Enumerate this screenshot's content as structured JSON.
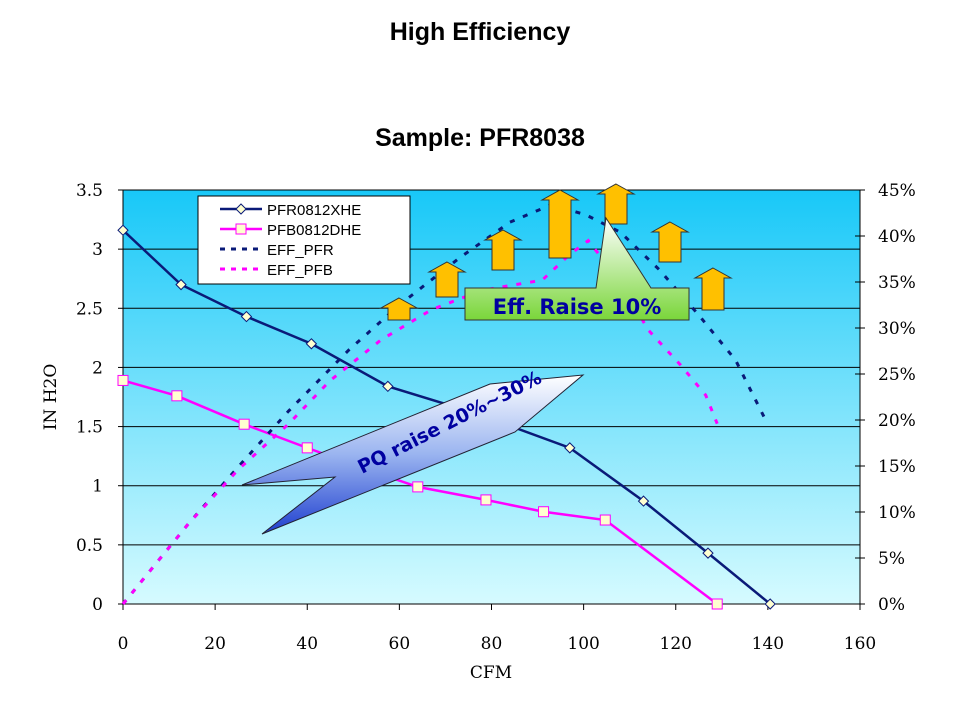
{
  "header": {
    "title": "High Efficiency"
  },
  "chart_data": {
    "type": "line",
    "title": "Sample: PFR8038",
    "xlabel": "CFM",
    "ylabel": "IN H2O",
    "y2label": "",
    "xlim": [
      0,
      160
    ],
    "ylim": [
      0,
      3.5
    ],
    "y2lim": [
      0,
      45
    ],
    "x_ticks": [
      "0",
      "20",
      "40",
      "60",
      "80",
      "100",
      "120",
      "140",
      "160"
    ],
    "y_ticks": [
      "0",
      "0.5",
      "1",
      "1.5",
      "2",
      "2.5",
      "3",
      "3.5"
    ],
    "y2_ticks": [
      "0%",
      "5%",
      "10%",
      "15%",
      "20%",
      "25%",
      "30%",
      "35%",
      "40%",
      "45%"
    ],
    "grid": true,
    "legend_position": "top-left",
    "series": [
      {
        "name": "PFR0812XHE",
        "axis": "left",
        "color": "#0a1a78",
        "style": "solid",
        "marker": "diamond",
        "x": [
          0,
          12.6,
          26.8,
          40.9,
          57.5,
          76,
          97,
          113,
          127,
          140.5
        ],
        "y": [
          3.16,
          2.7,
          2.43,
          2.2,
          1.84,
          1.62,
          1.32,
          0.87,
          0.43,
          0
        ]
      },
      {
        "name": "PFB0812DHE",
        "axis": "left",
        "color": "#ff00ff",
        "style": "solid",
        "marker": "square",
        "x": [
          0,
          11.7,
          26.3,
          40,
          52,
          64,
          78.8,
          91.3,
          104.7,
          129
        ],
        "y": [
          1.89,
          1.76,
          1.52,
          1.32,
          1.15,
          0.99,
          0.88,
          0.78,
          0.71,
          0
        ]
      },
      {
        "name": "EFF_PFR",
        "axis": "right",
        "color": "#0a1a78",
        "style": "dashed",
        "marker": "none",
        "x": [
          0,
          14,
          25,
          36,
          49,
          60,
          73,
          84,
          93,
          100.5,
          108,
          116.5,
          125,
          133,
          140
        ],
        "y": [
          0,
          8.6,
          14.9,
          21,
          27.6,
          32.5,
          37.6,
          41.5,
          43.4,
          42.3,
          40.4,
          36.3,
          31.4,
          26.5,
          19.5
        ]
      },
      {
        "name": "EFF_PFB",
        "axis": "right",
        "color": "#ff00ff",
        "style": "dashed",
        "marker": "none",
        "x": [
          0,
          14,
          25,
          36,
          45,
          56,
          67,
          78,
          91,
          97,
          101,
          108,
          114,
          121,
          126.5,
          129
        ],
        "y": [
          0,
          8.6,
          14.6,
          19.6,
          24.3,
          28.7,
          32,
          34.1,
          35.2,
          38,
          39.5,
          35,
          29.8,
          26,
          22.7,
          19.6
        ]
      }
    ],
    "annotations": [
      "Eff. Raise 10%",
      "PQ raise 20%~30%"
    ]
  },
  "colors": {
    "bg_top": "#18c8f8",
    "bg_bottom": "#d6fbff",
    "arrow": "#ffc000",
    "callout_green": "#8ee04a",
    "callout_text": "#0000a0"
  }
}
